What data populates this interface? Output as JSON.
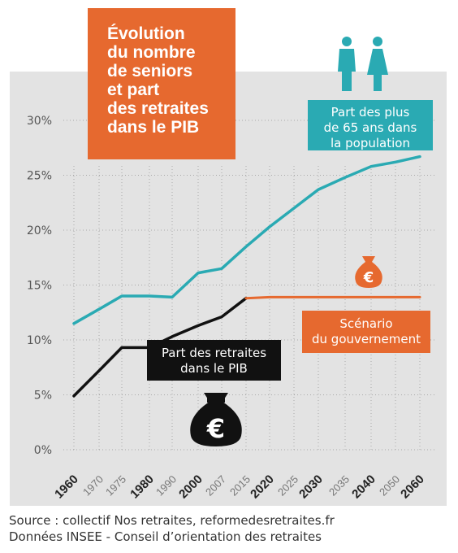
{
  "title_lines": [
    "Évolution",
    "du nombre",
    "de seniors",
    "et part",
    "des retraites",
    "dans le PIB"
  ],
  "colors": {
    "teal": "#2aaab3",
    "orange": "#e6692f",
    "black": "#111111",
    "panel": "#e3e3e3"
  },
  "icons": [
    "man-woman-icon",
    "euro-money-bag-icon"
  ],
  "callouts": {
    "population": [
      "Part des plus",
      "de 65 ans dans",
      "la population"
    ],
    "pib": [
      "Part des retraites",
      "dans le PIB"
    ],
    "scenario": [
      "Scénario",
      "du gouvernement"
    ]
  },
  "footer": {
    "line1": "Source : collectif Nos retraites, reformedesretraites.fr",
    "line2": "Données INSEE - Conseil d’orientation des retraites"
  },
  "chart_data": {
    "type": "line",
    "y_ticks": [
      "0%",
      "5%",
      "10%",
      "15%",
      "20%",
      "25%",
      "30%"
    ],
    "ylim": [
      0,
      30
    ],
    "x_ticks": [
      {
        "label": "1960",
        "bold": true
      },
      {
        "label": "1970",
        "bold": false
      },
      {
        "label": "1975",
        "bold": false
      },
      {
        "label": "1980",
        "bold": true
      },
      {
        "label": "1990",
        "bold": false
      },
      {
        "label": "2000",
        "bold": true
      },
      {
        "label": "2007",
        "bold": false
      },
      {
        "label": "2015",
        "bold": false
      },
      {
        "label": "2020",
        "bold": true
      },
      {
        "label": "2025",
        "bold": false
      },
      {
        "label": "2030",
        "bold": true
      },
      {
        "label": "2035",
        "bold": false
      },
      {
        "label": "2040",
        "bold": true
      },
      {
        "label": "2050",
        "bold": false
      },
      {
        "label": "2060",
        "bold": true
      }
    ],
    "series": [
      {
        "name": "Part des plus de 65 ans dans la population",
        "color": "#2aaab3",
        "values": [
          11.5,
          12.8,
          14.0,
          14.0,
          13.9,
          16.1,
          16.5,
          18.5,
          20.3,
          22.0,
          23.7,
          24.8,
          25.8,
          26.2,
          26.7
        ]
      },
      {
        "name": "Part des retraites dans le PIB",
        "color": "#111111",
        "values": [
          4.9,
          7.2,
          9.3,
          9.3,
          10.3,
          11.3,
          12.1,
          13.8,
          null,
          null,
          null,
          null,
          null,
          null,
          null
        ]
      },
      {
        "name": "Scénario du gouvernement",
        "color": "#e6692f",
        "values": [
          null,
          null,
          null,
          null,
          null,
          null,
          null,
          13.8,
          13.9,
          13.9,
          13.9,
          13.9,
          13.9,
          13.9,
          13.9
        ]
      }
    ]
  }
}
